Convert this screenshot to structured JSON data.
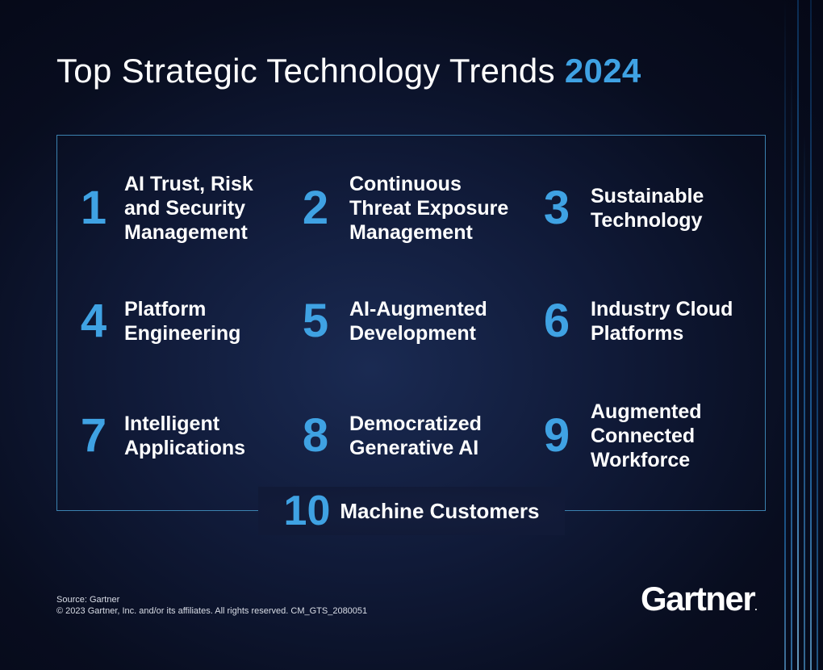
{
  "title": {
    "main": "Top Strategic Technology Trends",
    "year": "2024"
  },
  "trends": [
    {
      "number": "1",
      "lines": [
        "AI Trust, Risk",
        "and Security",
        "Management"
      ]
    },
    {
      "number": "2",
      "lines": [
        "Continuous",
        "Threat Exposure",
        "Management"
      ]
    },
    {
      "number": "3",
      "lines": [
        "Sustainable",
        "Technology"
      ]
    },
    {
      "number": "4",
      "lines": [
        "Platform",
        "Engineering"
      ]
    },
    {
      "number": "5",
      "lines": [
        "AI-Augmented",
        "Development"
      ]
    },
    {
      "number": "6",
      "lines": [
        "Industry Cloud",
        "Platforms"
      ]
    },
    {
      "number": "7",
      "lines": [
        "Intelligent",
        "Applications"
      ]
    },
    {
      "number": "8",
      "lines": [
        "Democratized",
        "Generative AI"
      ]
    },
    {
      "number": "9",
      "lines": [
        "Augmented",
        "Connected",
        "Workforce"
      ]
    },
    {
      "number": "10",
      "lines": [
        "Machine Customers"
      ]
    }
  ],
  "footer": {
    "source": "Source: Gartner",
    "copyright": "© 2023 Gartner, Inc. and/or its affiliates. All rights reserved. CM_GTS_2080051"
  },
  "logo": {
    "text": "Gartner",
    "mark": "."
  },
  "colors": {
    "accent": "#3fa2e3",
    "background": "#0a1128",
    "frame": "#3b82b0",
    "text": "#ffffff"
  }
}
